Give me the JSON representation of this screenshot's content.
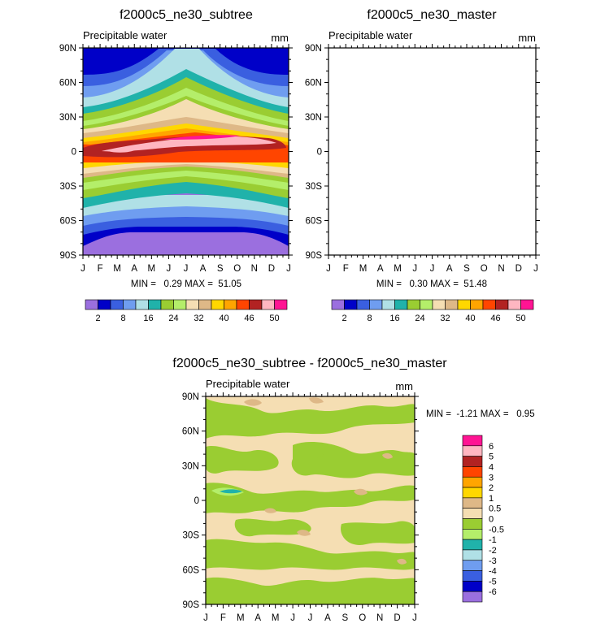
{
  "chart_data": [
    {
      "type": "heatmap",
      "title": "f2000c5_ne30_subtree",
      "variable": "Precipitable water",
      "units": "mm",
      "xlabel": "",
      "ylabel": "",
      "x_ticks": [
        "J",
        "F",
        "M",
        "A",
        "M",
        "J",
        "J",
        "A",
        "S",
        "O",
        "N",
        "D",
        "J"
      ],
      "y_ticks": [
        "90N",
        "60N",
        "30N",
        "0",
        "30S",
        "60S",
        "90S"
      ],
      "ylim": [
        -90,
        90
      ],
      "stats_text": "MIN =   0.29 MAX =  51.05",
      "min": 0.29,
      "max": 51.05,
      "colorbar_labels": [
        "2",
        "8",
        "16",
        "24",
        "32",
        "40",
        "46",
        "50"
      ],
      "colorbar_colors": [
        "#9b6fdf",
        "#0000c8",
        "#3a5fe0",
        "#6f9df0",
        "#b0e0e6",
        "#20b2aa",
        "#9acd32",
        "#b4ee6a",
        "#f5deb3",
        "#deb887",
        "#ffd700",
        "#ffa500",
        "#ff4500",
        "#b22222",
        "#ffb6c1",
        "#ff1493"
      ]
    },
    {
      "type": "heatmap",
      "title": "f2000c5_ne30_master",
      "variable": "Precipitable water",
      "units": "mm",
      "xlabel": "",
      "ylabel": "",
      "x_ticks": [
        "J",
        "F",
        "M",
        "A",
        "M",
        "J",
        "J",
        "A",
        "S",
        "O",
        "N",
        "D",
        "J"
      ],
      "y_ticks": [
        "90N",
        "60N",
        "30N",
        "0",
        "30S",
        "60S",
        "90S"
      ],
      "ylim": [
        -90,
        90
      ],
      "stats_text": "MIN =   0.30 MAX =  51.48",
      "min": 0.3,
      "max": 51.48,
      "colorbar_labels": [
        "2",
        "8",
        "16",
        "24",
        "32",
        "40",
        "46",
        "50"
      ],
      "colorbar_colors": [
        "#9b6fdf",
        "#0000c8",
        "#3a5fe0",
        "#6f9df0",
        "#b0e0e6",
        "#20b2aa",
        "#9acd32",
        "#b4ee6a",
        "#f5deb3",
        "#deb887",
        "#ffd700",
        "#ffa500",
        "#ff4500",
        "#b22222",
        "#ffb6c1",
        "#ff1493"
      ]
    },
    {
      "type": "heatmap",
      "title": "f2000c5_ne30_subtree - f2000c5_ne30_master",
      "variable": "Precipitable water",
      "units": "mm",
      "xlabel": "",
      "ylabel": "",
      "x_ticks": [
        "J",
        "F",
        "M",
        "A",
        "M",
        "J",
        "J",
        "A",
        "S",
        "O",
        "N",
        "D",
        "J"
      ],
      "y_ticks": [
        "90N",
        "60N",
        "30N",
        "0",
        "30S",
        "60S",
        "90S"
      ],
      "ylim": [
        -90,
        90
      ],
      "stats_text": "MIN =  -1.21 MAX =   0.95",
      "min": -1.21,
      "max": 0.95,
      "colorbar_labels": [
        "6",
        "5",
        "4",
        "3",
        "2",
        "1",
        "0.5",
        "0",
        "-0.5",
        "-1",
        "-2",
        "-3",
        "-4",
        "-5",
        "-6"
      ],
      "colorbar_colors": [
        "#ff1493",
        "#ffb6c1",
        "#b22222",
        "#ff4500",
        "#ffa500",
        "#ffd700",
        "#deb887",
        "#f5deb3",
        "#9acd32",
        "#b4ee6a",
        "#20b2aa",
        "#b0e0e6",
        "#6f9df0",
        "#3a5fe0",
        "#0000c8",
        "#9b6fdf"
      ]
    }
  ]
}
